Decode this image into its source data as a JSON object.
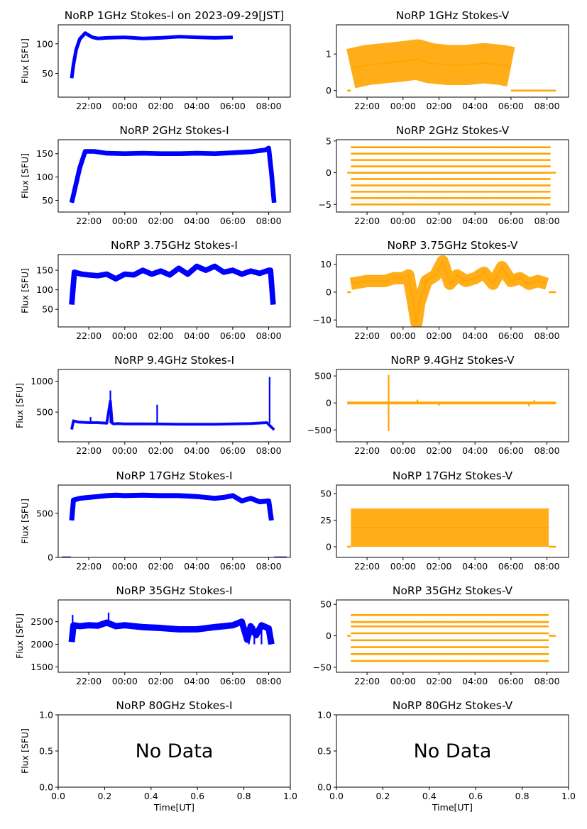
{
  "figure_title_date": "2023-09-29[JST]",
  "colors": {
    "stokes_i": "#0000ff",
    "stokes_v": "#ffa500",
    "axis": "#000000"
  },
  "chart_data": [
    {
      "id": "p1i",
      "type": "line",
      "title": "NoRP 1GHz Stokes-I on 2023-09-29[JST]",
      "ylabel": "Flux [SFU]",
      "xlabel": "",
      "color": "#0000ff",
      "x_ticks": [
        "22:00",
        "00:00",
        "02:00",
        "04:00",
        "06:00",
        "08:00"
      ],
      "x_tick_hours": [
        22,
        24,
        26,
        28,
        30,
        32
      ],
      "xlim_hours": [
        20.3,
        33.2
      ],
      "ylim": [
        10,
        132
      ],
      "y_ticks": [
        50,
        100
      ],
      "y_tick_labels": [
        "50",
        "100"
      ],
      "series": [
        {
          "name": "Stokes-I",
          "band": 3,
          "x": [
            21.05,
            21.15,
            21.3,
            21.5,
            21.8,
            22.2,
            22.5,
            23.0,
            24.0,
            25.0,
            26.0,
            27.0,
            28.0,
            29.0,
            30.0
          ],
          "y": [
            42,
            65,
            90,
            108,
            118,
            111,
            109,
            110,
            111,
            109,
            110,
            112,
            111,
            110,
            111
          ]
        }
      ]
    },
    {
      "id": "p1v",
      "type": "scatter",
      "title": "NoRP 1GHz Stokes-V",
      "ylabel": "",
      "xlabel": "",
      "color": "#ffa500",
      "x_ticks": [
        "22:00",
        "00:00",
        "02:00",
        "04:00",
        "06:00",
        "08:00"
      ],
      "x_tick_hours": [
        22,
        24,
        26,
        28,
        30,
        32
      ],
      "xlim_hours": [
        20.3,
        33.2
      ],
      "ylim": [
        -0.18,
        1.8
      ],
      "y_ticks": [
        0,
        1
      ],
      "y_tick_labels": [
        "0",
        "1"
      ],
      "series": [
        {
          "name": "Stokes-V",
          "band": 0.55,
          "x": [
            21.1,
            22.0,
            23.0,
            24.0,
            24.8,
            25.5,
            26.5,
            27.5,
            28.5,
            29.5,
            30.0
          ],
          "y": [
            0.6,
            0.7,
            0.75,
            0.8,
            0.85,
            0.75,
            0.7,
            0.7,
            0.75,
            0.7,
            0.65
          ]
        }
      ],
      "zero_segments": [
        [
          20.9,
          21.1
        ],
        [
          30.0,
          32.5
        ]
      ]
    },
    {
      "id": "p2i",
      "type": "line",
      "title": "NoRP 2GHz Stokes-I",
      "ylabel": "Flux [SFU]",
      "xlabel": "",
      "color": "#0000ff",
      "x_ticks": [
        "22:00",
        "00:00",
        "02:00",
        "04:00",
        "06:00",
        "08:00"
      ],
      "x_tick_hours": [
        22,
        24,
        26,
        28,
        30,
        32
      ],
      "xlim_hours": [
        20.3,
        33.2
      ],
      "ylim": [
        25,
        180
      ],
      "y_ticks": [
        50,
        100,
        150
      ],
      "y_tick_labels": [
        "50",
        "100",
        "150"
      ],
      "series": [
        {
          "name": "Stokes-I",
          "band": 5,
          "x": [
            21.05,
            21.2,
            21.5,
            21.8,
            22.3,
            23.0,
            24.0,
            25.0,
            26.0,
            27.0,
            28.0,
            29.0,
            30.0,
            31.0,
            31.8,
            32.0,
            32.15,
            32.3
          ],
          "y": [
            45,
            70,
            120,
            155,
            155,
            151,
            150,
            151,
            150,
            150,
            151,
            150,
            152,
            154,
            158,
            162,
            110,
            45
          ]
        }
      ]
    },
    {
      "id": "p2v",
      "type": "scatter",
      "title": "NoRP 2GHz Stokes-V",
      "ylabel": "",
      "xlabel": "",
      "color": "#ffa500",
      "x_ticks": [
        "22:00",
        "00:00",
        "02:00",
        "04:00",
        "06:00",
        "08:00"
      ],
      "x_tick_hours": [
        22,
        24,
        26,
        28,
        30,
        32
      ],
      "xlim_hours": [
        20.3,
        33.2
      ],
      "ylim": [
        -6.2,
        5.2
      ],
      "y_ticks": [
        -5,
        0,
        5
      ],
      "y_tick_labels": [
        "−5",
        "0",
        "5"
      ],
      "levels": [
        -5,
        -4,
        -3,
        -2,
        -1,
        0,
        1,
        2,
        3,
        4
      ],
      "levels_x": [
        21.1,
        32.2
      ],
      "zero_segments": [
        [
          20.9,
          21.1
        ],
        [
          32.2,
          32.5
        ]
      ]
    },
    {
      "id": "p3i",
      "type": "line",
      "title": "NoRP 3.75GHz Stokes-I",
      "ylabel": "Flux [SFU]",
      "xlabel": "",
      "color": "#0000ff",
      "x_ticks": [
        "22:00",
        "00:00",
        "02:00",
        "04:00",
        "06:00",
        "08:00"
      ],
      "x_tick_hours": [
        22,
        24,
        26,
        28,
        30,
        32
      ],
      "xlim_hours": [
        20.3,
        33.2
      ],
      "ylim": [
        5,
        190
      ],
      "y_ticks": [
        50,
        100,
        150
      ],
      "y_tick_labels": [
        "50",
        "100",
        "150"
      ],
      "series": [
        {
          "name": "Stokes-I",
          "band": 7,
          "x": [
            21.05,
            21.2,
            21.6,
            22.0,
            22.5,
            23.0,
            23.5,
            24.0,
            24.5,
            25.0,
            25.5,
            26.0,
            26.5,
            27.0,
            27.5,
            28.0,
            28.5,
            29.0,
            29.5,
            30.0,
            30.5,
            31.0,
            31.5,
            32.0,
            32.1,
            32.25
          ],
          "y": [
            62,
            145,
            140,
            138,
            136,
            140,
            128,
            140,
            138,
            150,
            140,
            148,
            138,
            155,
            140,
            160,
            150,
            160,
            145,
            150,
            140,
            148,
            142,
            150,
            150,
            62
          ]
        }
      ]
    },
    {
      "id": "p3v",
      "type": "scatter",
      "title": "NoRP 3.75GHz Stokes-V",
      "ylabel": "",
      "xlabel": "",
      "color": "#ffa500",
      "x_ticks": [
        "22:00",
        "00:00",
        "02:00",
        "04:00",
        "06:00",
        "08:00"
      ],
      "x_tick_hours": [
        22,
        24,
        26,
        28,
        30,
        32
      ],
      "xlim_hours": [
        20.3,
        33.2
      ],
      "ylim": [
        -12.5,
        13.5
      ],
      "y_ticks": [
        -10,
        0,
        10
      ],
      "y_tick_labels": [
        "−10",
        "0",
        "10"
      ],
      "series": [
        {
          "name": "Stokes-V",
          "band": 2.2,
          "x": [
            21.1,
            22.0,
            23.0,
            23.5,
            24.0,
            24.3,
            24.6,
            24.75,
            24.9,
            25.3,
            25.8,
            26.2,
            26.6,
            27.0,
            27.5,
            28.0,
            28.5,
            29.0,
            29.5,
            30.0,
            30.5,
            31.0,
            31.5,
            32.0
          ],
          "y": [
            3,
            4,
            4,
            5,
            5,
            6,
            -5,
            -11,
            -4,
            4,
            6,
            11,
            3,
            6,
            4,
            5,
            7,
            3,
            9,
            4,
            5,
            3,
            4,
            3
          ]
        }
      ],
      "zero_segments": [
        [
          20.9,
          21.1
        ],
        [
          32.1,
          32.5
        ]
      ]
    },
    {
      "id": "p4i",
      "type": "scatter",
      "title": "NoRP 9.4GHz Stokes-I",
      "ylabel": "Flux [SFU]",
      "xlabel": "",
      "color": "#0000ff",
      "x_ticks": [
        "22:00",
        "00:00",
        "02:00",
        "04:00",
        "06:00",
        "08:00"
      ],
      "x_tick_hours": [
        22,
        24,
        26,
        28,
        30,
        32
      ],
      "xlim_hours": [
        20.3,
        33.2
      ],
      "ylim": [
        20,
        1190
      ],
      "y_ticks": [
        500,
        1000
      ],
      "y_tick_labels": [
        "500",
        "1000"
      ],
      "series": [
        {
          "name": "Stokes-I",
          "band": 18,
          "x": [
            21.05,
            21.15,
            21.4,
            22.0,
            22.5,
            23.0,
            23.2,
            23.3,
            23.4,
            23.6,
            24.0,
            25.0,
            26.0,
            27.0,
            28.0,
            29.0,
            30.0,
            31.0,
            31.9,
            32.0,
            32.3
          ],
          "y": [
            220,
            360,
            340,
            330,
            330,
            320,
            680,
            320,
            310,
            315,
            310,
            310,
            308,
            305,
            305,
            305,
            310,
            315,
            330,
            300,
            215
          ]
        }
      ],
      "zero_segments": [
        [
          20.5,
          21.0
        ],
        [
          32.4,
          33.0
        ]
      ],
      "spikes": [
        [
          23.2,
          850
        ],
        [
          25.8,
          620
        ],
        [
          32.05,
          1070
        ],
        [
          22.1,
          420
        ]
      ]
    },
    {
      "id": "p4v",
      "type": "scatter",
      "title": "NoRP 9.4GHz Stokes-V",
      "ylabel": "",
      "xlabel": "",
      "color": "#ffa500",
      "x_ticks": [
        "22:00",
        "00:00",
        "02:00",
        "04:00",
        "06:00",
        "08:00"
      ],
      "x_tick_hours": [
        22,
        24,
        26,
        28,
        30,
        32
      ],
      "xlim_hours": [
        20.3,
        33.2
      ],
      "ylim": [
        -720,
        620
      ],
      "y_ticks": [
        -500,
        0,
        500
      ],
      "y_tick_labels": [
        "−500",
        "0",
        "500"
      ],
      "series": [
        {
          "name": "Stokes-V",
          "band": 12,
          "x": [
            20.9,
            32.5
          ],
          "y": [
            0,
            0
          ]
        }
      ],
      "spikes": [
        [
          23.2,
          520
        ],
        [
          23.2,
          -520
        ],
        [
          24.8,
          60
        ],
        [
          26.0,
          -50
        ],
        [
          31.0,
          -60
        ],
        [
          31.3,
          50
        ]
      ]
    },
    {
      "id": "p5i",
      "type": "line",
      "title": "NoRP 17GHz Stokes-I",
      "ylabel": "Flux [SFU]",
      "xlabel": "",
      "color": "#0000ff",
      "x_ticks": [
        "22:00",
        "00:00",
        "02:00",
        "04:00",
        "06:00",
        "08:00"
      ],
      "x_tick_hours": [
        22,
        24,
        26,
        28,
        30,
        32
      ],
      "xlim_hours": [
        20.3,
        33.2
      ],
      "ylim": [
        0,
        820
      ],
      "y_ticks": [
        0,
        500
      ],
      "y_tick_labels": [
        "0",
        "500"
      ],
      "series": [
        {
          "name": "Stokes-I",
          "band": 28,
          "x": [
            21.05,
            21.15,
            21.5,
            22.0,
            22.5,
            23.0,
            23.5,
            24.0,
            25.0,
            26.0,
            27.0,
            28.0,
            29.0,
            29.5,
            30.0,
            30.5,
            31.0,
            31.5,
            32.0,
            32.15
          ],
          "y": [
            420,
            650,
            670,
            680,
            690,
            700,
            705,
            700,
            705,
            700,
            700,
            690,
            670,
            680,
            700,
            640,
            670,
            630,
            640,
            420
          ]
        }
      ],
      "zero_segments": [
        [
          20.5,
          21.0
        ],
        [
          32.3,
          33.0
        ]
      ]
    },
    {
      "id": "p5v",
      "type": "scatter",
      "title": "NoRP 17GHz Stokes-V",
      "ylabel": "",
      "xlabel": "",
      "color": "#ffa500",
      "x_ticks": [
        "22:00",
        "00:00",
        "02:00",
        "04:00",
        "06:00",
        "08:00"
      ],
      "x_tick_hours": [
        22,
        24,
        26,
        28,
        30,
        32
      ],
      "xlim_hours": [
        20.3,
        33.2
      ],
      "ylim": [
        -10,
        58
      ],
      "y_ticks": [
        0,
        25,
        50
      ],
      "y_tick_labels": [
        "0",
        "25",
        "50"
      ],
      "series": [
        {
          "name": "Stokes-V",
          "band": 18,
          "x": [
            21.1,
            32.1
          ],
          "y": [
            18,
            18
          ]
        }
      ],
      "zero_segments": [
        [
          20.9,
          21.1
        ],
        [
          32.1,
          32.5
        ]
      ]
    },
    {
      "id": "p6i",
      "type": "line",
      "title": "NoRP 35GHz Stokes-I",
      "ylabel": "Flux [SFU]",
      "xlabel": "",
      "color": "#0000ff",
      "x_ticks": [
        "22:00",
        "00:00",
        "02:00",
        "04:00",
        "06:00",
        "08:00"
      ],
      "x_tick_hours": [
        22,
        24,
        26,
        28,
        30,
        32
      ],
      "xlim_hours": [
        20.3,
        33.2
      ],
      "ylim": [
        1380,
        2980
      ],
      "y_ticks": [
        1500,
        2000,
        2500
      ],
      "y_tick_labels": [
        "1500",
        "2000",
        "2500"
      ],
      "series": [
        {
          "name": "Stokes-I",
          "band": 70,
          "x": [
            21.05,
            21.15,
            21.5,
            22.0,
            22.5,
            23.0,
            23.5,
            24.0,
            25.0,
            26.0,
            27.0,
            28.0,
            29.0,
            30.0,
            30.5,
            30.8,
            31.0,
            31.3,
            31.6,
            32.0,
            32.15
          ],
          "y": [
            2050,
            2420,
            2400,
            2420,
            2410,
            2480,
            2400,
            2420,
            2380,
            2360,
            2330,
            2330,
            2380,
            2420,
            2500,
            2100,
            2400,
            2200,
            2420,
            2350,
            2000
          ]
        }
      ],
      "spikes": [
        [
          23.1,
          2700
        ],
        [
          21.1,
          2650
        ],
        [
          30.9,
          2000
        ],
        [
          31.2,
          2000
        ],
        [
          31.6,
          2000
        ]
      ]
    },
    {
      "id": "p6v",
      "type": "scatter",
      "title": "NoRP 35GHz Stokes-V",
      "ylabel": "",
      "xlabel": "",
      "color": "#ffa500",
      "x_ticks": [
        "22:00",
        "00:00",
        "02:00",
        "04:00",
        "06:00",
        "08:00"
      ],
      "x_tick_hours": [
        22,
        24,
        26,
        28,
        30,
        32
      ],
      "xlim_hours": [
        20.3,
        33.2
      ],
      "ylim": [
        -58,
        57
      ],
      "y_ticks": [
        -50,
        0,
        50
      ],
      "y_tick_labels": [
        "−50",
        "0",
        "50"
      ],
      "levels": [
        -40,
        -29,
        -18,
        -7,
        4,
        15,
        22,
        33
      ],
      "levels_x": [
        21.1,
        32.1
      ],
      "zero_segments": [
        [
          20.9,
          21.1
        ],
        [
          32.1,
          32.5
        ]
      ]
    },
    {
      "id": "p7i",
      "type": "table",
      "title": "NoRP 80GHz Stokes-I",
      "ylabel": "Flux [SFU]",
      "xlabel": "Time[UT]",
      "message": "No Data",
      "x_tick_values": [
        0.0,
        0.2,
        0.4,
        0.6,
        0.8,
        1.0
      ],
      "x_tick_labels": [
        "0.0",
        "0.2",
        "0.4",
        "0.6",
        "0.8",
        "1.0"
      ],
      "y_tick_values": [
        0.0,
        0.5,
        1.0
      ],
      "y_tick_labels": [
        "0.0",
        "0.5",
        "1.0"
      ]
    },
    {
      "id": "p7v",
      "type": "table",
      "title": "NoRP 80GHz Stokes-V",
      "ylabel": "",
      "xlabel": "Time[UT]",
      "message": "No Data",
      "x_tick_values": [
        0.0,
        0.2,
        0.4,
        0.6,
        0.8,
        1.0
      ],
      "x_tick_labels": [
        "0.0",
        "0.2",
        "0.4",
        "0.6",
        "0.8",
        "1.0"
      ],
      "y_tick_values": [
        0.0,
        0.5,
        1.0
      ],
      "y_tick_labels": [
        "0.0",
        "0.5",
        "1.0"
      ]
    }
  ]
}
